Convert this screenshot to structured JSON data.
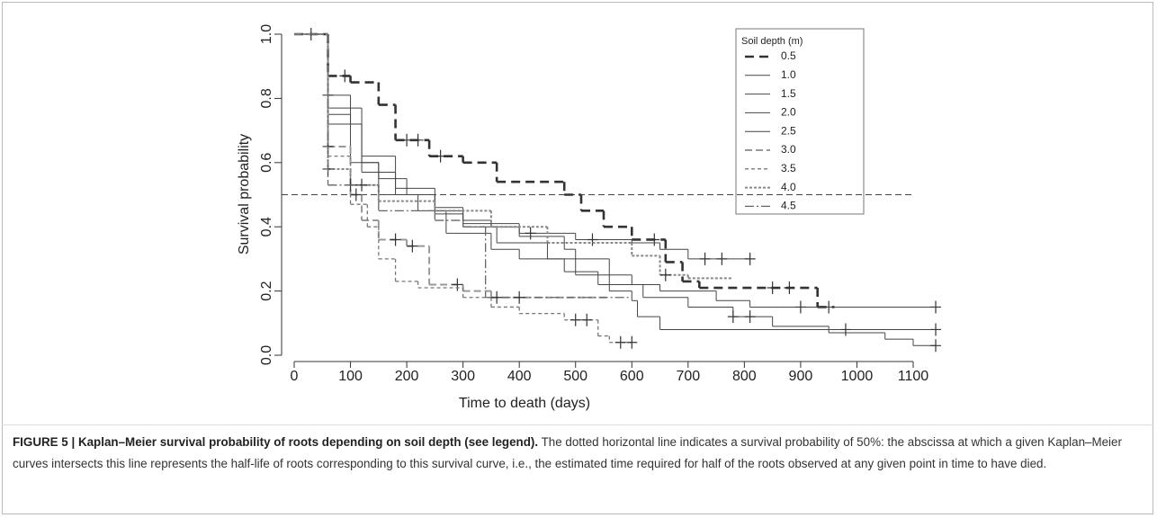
{
  "chart_data": {
    "type": "step",
    "xlabel": "Time to death (days)",
    "ylabel": "Survival probability",
    "xlim": [
      0,
      1100
    ],
    "ylim": [
      0,
      1
    ],
    "xticks": [
      0,
      100,
      200,
      300,
      400,
      500,
      600,
      700,
      800,
      900,
      1000,
      1100
    ],
    "yticks": [
      {
        "value": 0,
        "label": "0.0"
      },
      {
        "value": 0.2,
        "label": "0.2"
      },
      {
        "value": 0.4,
        "label": "0.4"
      },
      {
        "value": 0.6,
        "label": "0.6"
      },
      {
        "value": 0.8,
        "label": "0.8"
      },
      {
        "value": 1,
        "label": "1.0"
      }
    ],
    "hline": 0.5,
    "legend_title": "Soil depth (m)",
    "series": [
      {
        "name": "0.5",
        "color": "#333333",
        "width": 2.6,
        "dash": "10 6",
        "x": [
          0,
          60,
          100,
          150,
          180,
          240,
          300,
          360,
          480,
          510,
          550,
          600,
          660,
          690,
          720,
          930
        ],
        "values": [
          1,
          0.87,
          0.85,
          0.78,
          0.67,
          0.62,
          0.6,
          0.54,
          0.5,
          0.45,
          0.4,
          0.36,
          0.29,
          0.23,
          0.21,
          0.15
        ],
        "end": 960,
        "censored": [
          90,
          200,
          220,
          260,
          640,
          850,
          880,
          950
        ]
      },
      {
        "name": "1.0",
        "color": "#444444",
        "width": 1,
        "dash": "",
        "x": [
          0,
          60,
          100,
          120,
          150,
          200,
          250,
          300,
          350,
          400,
          500,
          600,
          650,
          700
        ],
        "values": [
          1,
          0.81,
          0.72,
          0.6,
          0.55,
          0.5,
          0.45,
          0.42,
          0.4,
          0.38,
          0.36,
          0.35,
          0.33,
          0.3
        ],
        "end": 810,
        "censored": [
          60,
          420,
          530,
          730,
          760,
          810
        ]
      },
      {
        "name": "1.5",
        "color": "#444444",
        "width": 1,
        "dash": "",
        "x": [
          0,
          60,
          120,
          180,
          250,
          300,
          400,
          480,
          500,
          560,
          600,
          650,
          750,
          810
        ],
        "values": [
          1,
          0.77,
          0.62,
          0.52,
          0.46,
          0.41,
          0.37,
          0.33,
          0.3,
          0.25,
          0.22,
          0.2,
          0.17,
          0.15
        ],
        "end": 1140,
        "censored": [
          900,
          1140
        ]
      },
      {
        "name": "2.0",
        "color": "#444444",
        "width": 1,
        "dash": "",
        "x": [
          0,
          60,
          120,
          180,
          250,
          300,
          360,
          450,
          500,
          560,
          600,
          610,
          650
        ],
        "values": [
          1,
          0.72,
          0.57,
          0.5,
          0.44,
          0.4,
          0.35,
          0.3,
          0.25,
          0.2,
          0.17,
          0.12,
          0.08
        ],
        "end": 1140,
        "censored": [
          980,
          1140
        ]
      },
      {
        "name": "2.5",
        "color": "#444444",
        "width": 1,
        "dash": "",
        "x": [
          0,
          60,
          100,
          150,
          220,
          270,
          350,
          400,
          480,
          540,
          620,
          700,
          780,
          850,
          950,
          1050,
          1100
        ],
        "values": [
          1,
          0.75,
          0.6,
          0.5,
          0.45,
          0.38,
          0.33,
          0.3,
          0.26,
          0.22,
          0.18,
          0.15,
          0.12,
          0.09,
          0.07,
          0.05,
          0.03
        ],
        "end": 1140,
        "censored": [
          780,
          810,
          1140
        ]
      },
      {
        "name": "3.0",
        "color": "#999999",
        "width": 2,
        "dash": "8 4",
        "x": [
          0,
          60,
          100,
          120,
          150,
          200,
          240,
          300,
          350
        ],
        "values": [
          1,
          0.65,
          0.5,
          0.42,
          0.36,
          0.34,
          0.22,
          0.2,
          0.18
        ],
        "end": 560,
        "censored": [
          60,
          110,
          180,
          210,
          290
        ]
      },
      {
        "name": "3.5",
        "color": "#777777",
        "width": 1.3,
        "dash": "4 3",
        "x": [
          0,
          60,
          100,
          130,
          150,
          180,
          220,
          300,
          350,
          400,
          480,
          540,
          560
        ],
        "values": [
          1,
          0.62,
          0.47,
          0.4,
          0.3,
          0.23,
          0.21,
          0.18,
          0.15,
          0.13,
          0.11,
          0.06,
          0.04
        ],
        "end": 600,
        "censored": [
          30,
          500,
          520,
          580,
          600
        ]
      },
      {
        "name": "4.0",
        "color": "#888888",
        "width": 2,
        "dash": "3 2",
        "x": [
          0,
          60,
          100,
          150,
          250,
          350,
          450,
          600,
          650,
          700
        ],
        "values": [
          1,
          0.58,
          0.53,
          0.48,
          0.45,
          0.4,
          0.35,
          0.31,
          0.25,
          0.24
        ],
        "end": 780,
        "censored": [
          60,
          100,
          660
        ]
      },
      {
        "name": "4.5",
        "color": "#666666",
        "width": 1.3,
        "dash": "10 3 2 3",
        "x": [
          0,
          60,
          150,
          250,
          300,
          340
        ],
        "values": [
          1,
          0.53,
          0.45,
          0.42,
          0.4,
          0.18
        ],
        "end": 600,
        "censored": [
          120,
          360,
          400
        ]
      }
    ]
  },
  "caption": {
    "bold": "FIGURE 5 | Kaplan–Meier survival probability of roots depending on soil depth (see legend).",
    "text": "The dotted horizontal line indicates a survival probability of 50%: the abscissa at which a given Kaplan–Meier curves intersects this line represents the half-life of roots corresponding to this survival curve, i.e., the estimated time required for half of the roots observed at any given point in time to have died."
  }
}
